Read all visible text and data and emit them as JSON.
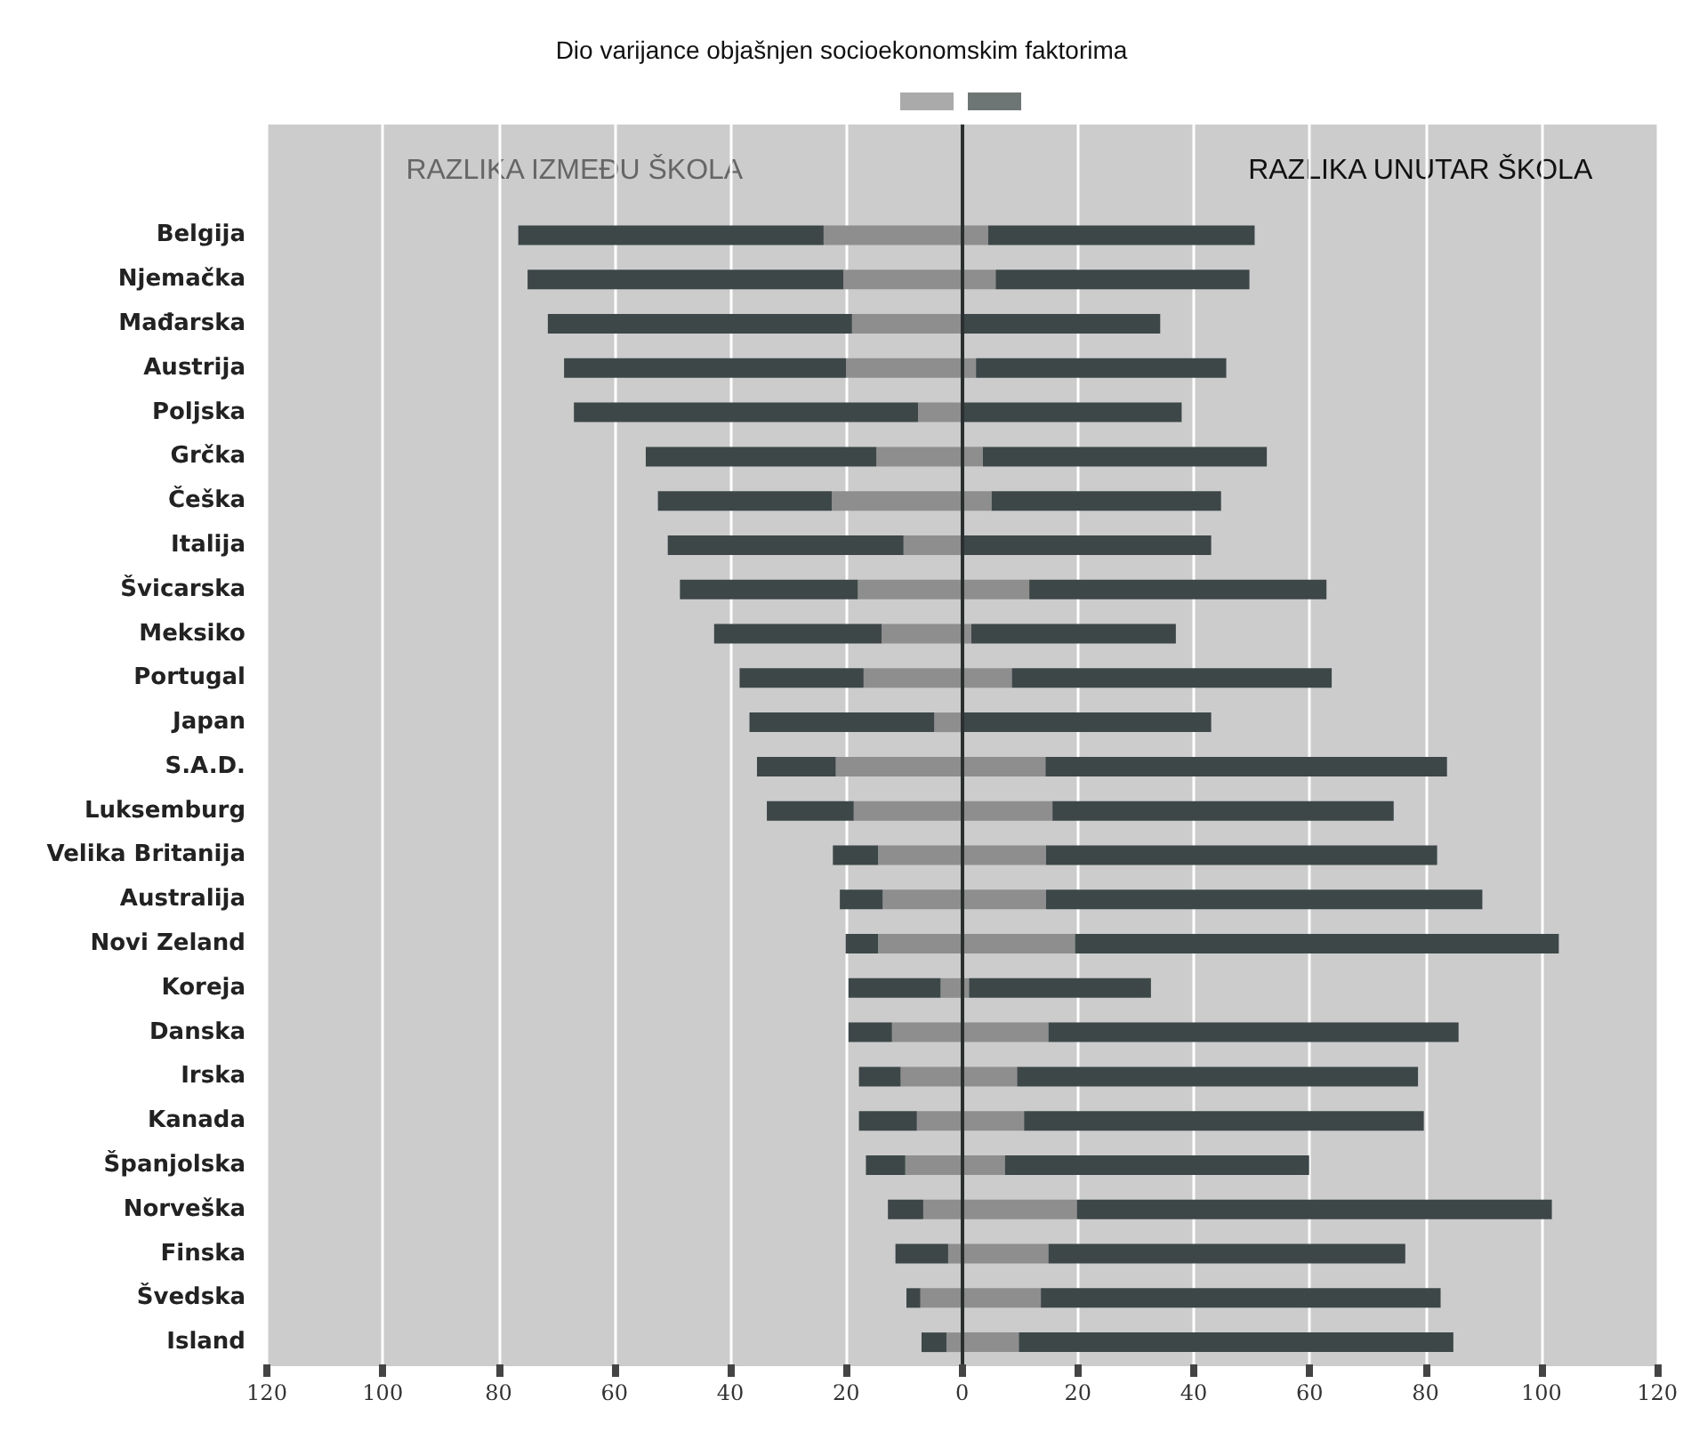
{
  "chart_data": {
    "type": "bar",
    "orientation": "horizontal",
    "stacked": true,
    "title": "Dio varijance objašnjen socioekonomskim faktorima",
    "annotations": [
      "RAZLIKA IZMEĐU ŠKOLA",
      "RAZLIKA UNUTAR ŠKOLA"
    ],
    "categories": [
      "Belgija",
      "Njemačka",
      "Mađarska",
      "Austrija",
      "Poljska",
      "Grčka",
      "Češka",
      "Italija",
      "Švicarska",
      "Meksiko",
      "Portugal",
      "Japan",
      "S.A.D.",
      "Luksemburg",
      "Velika Britanija",
      "Australija",
      "Novi Zeland",
      "Koreja",
      "Danska",
      "Irska",
      "Kanada",
      "Španjolska",
      "Norveška",
      "Finska",
      "Švedska",
      "Island"
    ],
    "series": [
      {
        "color": "#8e8e8e",
        "values": [
          -23.9,
          -20.5,
          -19.0,
          -20.0,
          -7.6,
          -14.8,
          -22.5,
          -10.1,
          -18.0,
          -13.9,
          -17.0,
          -4.8,
          -21.8,
          -18.7,
          -14.5,
          -13.7,
          -14.5,
          -3.7,
          -12.1,
          -10.6,
          -7.8,
          -9.8,
          -6.7,
          -2.4,
          -7.2,
          -2.7
        ]
      },
      {
        "color": "#3e4747",
        "values": [
          -52.7,
          -54.5,
          -52.5,
          -48.7,
          -59.4,
          -39.8,
          -30.0,
          -40.7,
          -30.7,
          -28.9,
          -21.4,
          -31.9,
          -13.6,
          -15.0,
          -7.8,
          -7.4,
          -5.6,
          -15.9,
          -7.5,
          -7.2,
          -10.0,
          -6.8,
          -6.1,
          -9.1,
          -2.4,
          -4.3
        ]
      },
      {
        "color": "#8e8e8e",
        "values": [
          4.5,
          5.8,
          null,
          2.4,
          null,
          3.6,
          5.1,
          null,
          11.6,
          1.6,
          8.6,
          null,
          14.4,
          15.6,
          14.5,
          14.5,
          19.5,
          1.2,
          14.9,
          9.5,
          10.7,
          7.4,
          19.8,
          14.9,
          13.6,
          9.8
        ]
      },
      {
        "color": "#3e4747",
        "values": [
          46.0,
          43.8,
          34.2,
          43.2,
          37.9,
          49.0,
          39.6,
          43.0,
          51.3,
          35.3,
          55.2,
          43.0,
          69.3,
          58.9,
          67.5,
          75.3,
          83.5,
          31.4,
          70.8,
          69.2,
          69.0,
          52.5,
          82.0,
          61.6,
          69.0,
          75.0
        ]
      }
    ],
    "xlim": [
      -120,
      120
    ],
    "xticks": [
      {
        "value": -120,
        "label": "120"
      },
      {
        "value": -100,
        "label": "100"
      },
      {
        "value": -80,
        "label": "80"
      },
      {
        "value": -60,
        "label": "60"
      },
      {
        "value": -40,
        "label": "40"
      },
      {
        "value": -20,
        "label": "20"
      },
      0,
      20,
      40,
      60,
      80,
      100,
      120
    ],
    "ref_lines": [
      {
        "axis": "x",
        "value": 0,
        "color": "#2a2f2f"
      }
    ],
    "grid": "x"
  }
}
